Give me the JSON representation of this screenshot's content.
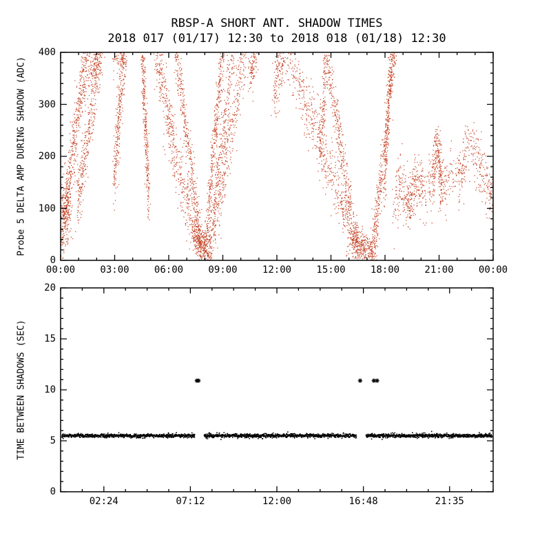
{
  "figure": {
    "background": "#ffffff",
    "axis_color": "#000000"
  },
  "chart_data": [
    {
      "type": "scatter",
      "name": "probe5-delta-amp-during-shadow",
      "title": "RBSP-A SHORT ANT. SHADOW TIMES",
      "subtitle": "2018 017 (01/17) 12:30 to 2018 018 (01/18) 12:30",
      "ylabel": "Probe 5 DELTA AMP DURING SHADOW (ADC)",
      "point_color": "#c23a1a",
      "xlim_hours": [
        0,
        24
      ],
      "ylim": [
        0,
        400
      ],
      "yticks": [
        0,
        100,
        200,
        300,
        400
      ],
      "xticks": [
        {
          "hour": 0,
          "label": "00:00"
        },
        {
          "hour": 3,
          "label": "03:00"
        },
        {
          "hour": 6,
          "label": "06:00"
        },
        {
          "hour": 9,
          "label": "09:00"
        },
        {
          "hour": 12,
          "label": "12:00"
        },
        {
          "hour": 15,
          "label": "15:00"
        },
        {
          "hour": 18,
          "label": "18:00"
        },
        {
          "hour": 21,
          "label": "21:00"
        },
        {
          "hour": 24,
          "label": "00:00"
        }
      ],
      "x_minor_step": 1,
      "y_minor_step": 20,
      "branches": [
        {
          "pts": [
            [
              0.05,
              60
            ],
            [
              0.5,
              125
            ]
          ],
          "n": 240,
          "st": 0.1,
          "sy": 30
        },
        {
          "pts": [
            [
              0.25,
              95
            ],
            [
              1.55,
              430
            ]
          ],
          "n": 430,
          "st": 0.07,
          "sy": 30
        },
        {
          "pts": [
            [
              0.95,
              105
            ],
            [
              2.3,
              430
            ]
          ],
          "n": 380,
          "st": 0.07,
          "sy": 30
        },
        {
          "pts": [
            [
              1.6,
              365
            ],
            [
              2.35,
              425
            ]
          ],
          "n": 150,
          "st": 0.1,
          "sy": 24
        },
        {
          "pts": [
            [
              2.95,
              150
            ],
            [
              3.6,
              430
            ]
          ],
          "n": 300,
          "st": 0.06,
          "sy": 28
        },
        {
          "pts": [
            [
              3.05,
              390
            ],
            [
              3.65,
              420
            ]
          ],
          "n": 110,
          "st": 0.12,
          "sy": 18
        },
        {
          "pts": [
            [
              4.5,
              430
            ],
            [
              4.9,
              115
            ]
          ],
          "n": 300,
          "st": 0.05,
          "sy": 26
        },
        {
          "pts": [
            [
              5.15,
              430
            ],
            [
              6.35,
              205
            ],
            [
              7.8,
              4
            ]
          ],
          "n": 540,
          "st": 0.06,
          "sy": 30
        },
        {
          "pts": [
            [
              6.3,
              430
            ],
            [
              7.88,
              4
            ]
          ],
          "n": 380,
          "st": 0.05,
          "sy": 22
        },
        {
          "pts": [
            [
              7.45,
              55
            ],
            [
              8.35,
              4
            ]
          ],
          "n": 210,
          "st": 0.08,
          "sy": 13
        },
        {
          "pts": [
            [
              7.98,
              4
            ],
            [
              9.05,
              430
            ]
          ],
          "n": 390,
          "st": 0.05,
          "sy": 24
        },
        {
          "pts": [
            [
              8.2,
              4
            ],
            [
              9.65,
              430
            ]
          ],
          "n": 340,
          "st": 0.06,
          "sy": 26
        },
        {
          "pts": [
            [
              8.55,
              60
            ],
            [
              10.35,
              430
            ]
          ],
          "n": 300,
          "st": 0.07,
          "sy": 28
        },
        {
          "pts": [
            [
              10.5,
              345
            ],
            [
              10.9,
              420
            ]
          ],
          "n": 130,
          "st": 0.08,
          "sy": 26
        },
        {
          "pts": [
            [
              11.85,
              320
            ],
            [
              12.4,
              420
            ]
          ],
          "n": 160,
          "st": 0.09,
          "sy": 30
        },
        {
          "pts": [
            [
              12.35,
              430
            ],
            [
              14.25,
              245
            ],
            [
              16.6,
              4
            ]
          ],
          "n": 580,
          "st": 0.07,
          "sy": 32
        },
        {
          "pts": [
            [
              14.6,
              430
            ],
            [
              16.5,
              4
            ]
          ],
          "n": 360,
          "st": 0.05,
          "sy": 24
        },
        {
          "pts": [
            [
              14.4,
              205
            ],
            [
              14.8,
              420
            ]
          ],
          "n": 150,
          "st": 0.06,
          "sy": 30
        },
        {
          "pts": [
            [
              16.25,
              40
            ],
            [
              17.4,
              8
            ]
          ],
          "n": 300,
          "st": 0.1,
          "sy": 15
        },
        {
          "pts": [
            [
              17.3,
              5
            ],
            [
              18.6,
              430
            ]
          ],
          "n": 430,
          "st": 0.05,
          "sy": 26
        },
        {
          "pts": [
            [
              17.95,
              125
            ],
            [
              18.4,
              430
            ]
          ],
          "n": 200,
          "st": 0.05,
          "sy": 24
        },
        {
          "pts": [
            [
              18.5,
              95
            ],
            [
              18.9,
              150
            ],
            [
              19.3,
              100
            ],
            [
              19.75,
              165
            ],
            [
              20.2,
              125
            ],
            [
              20.6,
              150
            ],
            [
              20.9,
              225
            ],
            [
              21.15,
              135
            ],
            [
              21.6,
              165
            ],
            [
              22.05,
              150
            ],
            [
              22.5,
              210
            ],
            [
              22.8,
              225
            ],
            [
              23.1,
              195
            ],
            [
              23.4,
              170
            ],
            [
              23.7,
              150
            ],
            [
              24,
              115
            ]
          ],
          "n": 950,
          "st": 0.05,
          "sy": 27
        }
      ]
    },
    {
      "type": "scatter",
      "name": "time-between-shadows",
      "ylabel": "TIME BETWEEN SHADOWS (SEC)",
      "point_color": "#000000",
      "xlim_hours": [
        0,
        24
      ],
      "ylim": [
        0,
        20
      ],
      "yticks": [
        0,
        5,
        10,
        15,
        20
      ],
      "xticks": [
        {
          "hour": 2.4,
          "label": "02:24"
        },
        {
          "hour": 7.2,
          "label": "07:12"
        },
        {
          "hour": 12.0,
          "label": "12:00"
        },
        {
          "hour": 16.8,
          "label": "16:48"
        },
        {
          "hour": 21.5833,
          "label": "21:35"
        }
      ],
      "x_minor_step": 1.2,
      "y_minor_step": 1,
      "band": {
        "y_sec": 5.5,
        "jitter": 0.09,
        "dt_hours": 0.009,
        "segments_hours": [
          [
            0.07,
            7.45
          ],
          [
            7.97,
            16.42
          ],
          [
            16.95,
            23.94
          ]
        ]
      },
      "outliers": [
        {
          "hour": 7.56,
          "y_sec": 10.9
        },
        {
          "hour": 7.65,
          "y_sec": 10.9
        },
        {
          "hour": 16.62,
          "y_sec": 10.9
        },
        {
          "hour": 17.38,
          "y_sec": 10.9
        },
        {
          "hour": 17.56,
          "y_sec": 10.9
        }
      ]
    }
  ]
}
